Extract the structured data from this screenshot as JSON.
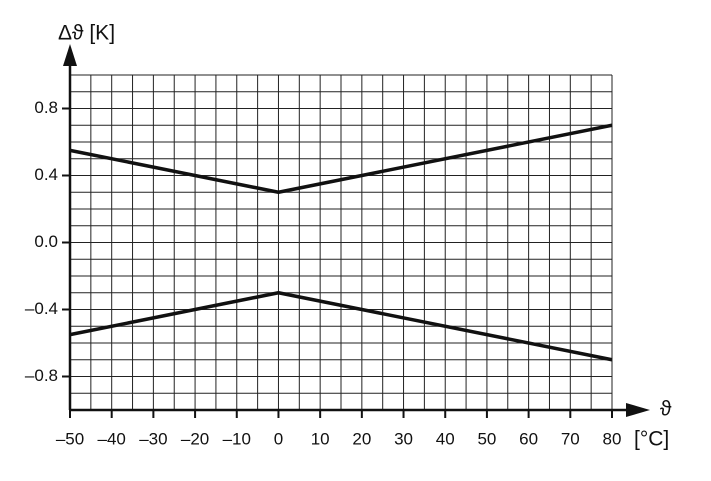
{
  "chart_data": {
    "type": "line",
    "y_label": "Δϑ [K]",
    "x_label": "ϑ",
    "x_unit": "[°C]",
    "x": [
      -50,
      0,
      80
    ],
    "series": [
      {
        "color": "#111111",
        "values": [
          0.55,
          0.3,
          0.7
        ]
      },
      {
        "color": "#111111",
        "values": [
          -0.55,
          -0.3,
          -0.7
        ]
      }
    ],
    "xlim": [
      -50,
      80
    ],
    "xticks": [
      {
        "value": -50,
        "label": "–50"
      },
      {
        "value": -40,
        "label": "–40"
      },
      {
        "value": -30,
        "label": "–30"
      },
      {
        "value": -20,
        "label": "–20"
      },
      {
        "value": -10,
        "label": "–10"
      },
      0,
      10,
      20,
      30,
      40,
      50,
      60,
      70,
      80
    ],
    "ylim": [
      -1,
      1
    ],
    "yticks": [
      {
        "value": -0.8,
        "label": "–0.8"
      },
      {
        "value": -0.4,
        "label": "–0.4"
      },
      {
        "value": 0,
        "label": "0.0"
      },
      0.4,
      0.8
    ],
    "grid": true
  }
}
